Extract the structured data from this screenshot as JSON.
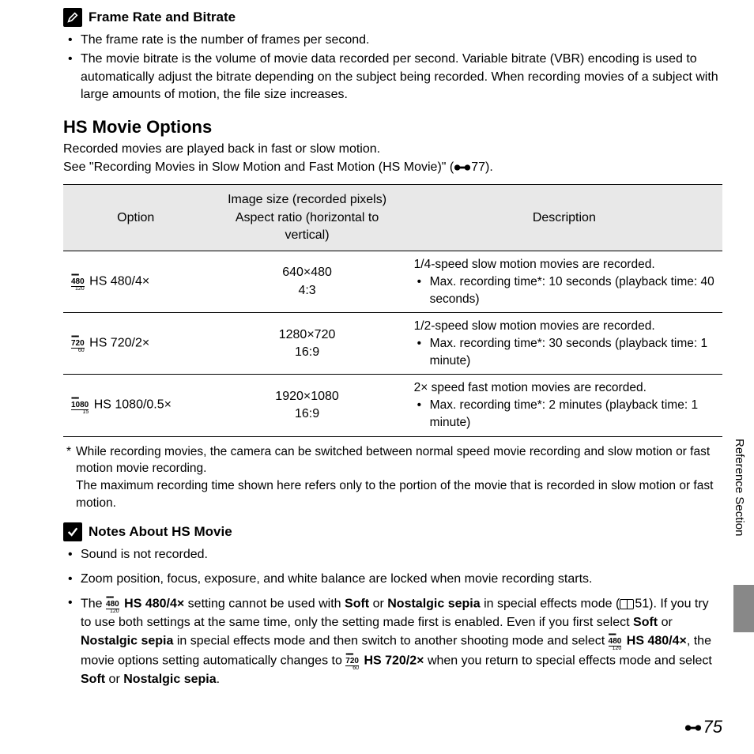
{
  "frame_rate_section": {
    "title": "Frame Rate and Bitrate",
    "bullets": [
      "The frame rate is the number of frames per second.",
      "The movie bitrate is the volume of movie data recorded per second. Variable bitrate (VBR) encoding is used to automatically adjust the bitrate depending on the subject being recorded. When recording movies of a subject with large amounts of motion, the file size increases."
    ]
  },
  "hs_section": {
    "title": "HS Movie Options",
    "intro_line1": "Recorded movies are played back in fast or slow motion.",
    "intro_line2a": "See \"Recording Movies in Slow Motion and Fast Motion (HS Movie)\" (",
    "intro_ref": "77).",
    "table": {
      "headers": [
        "Option",
        "Image size (recorded pixels)\nAspect ratio (horizontal to vertical)",
        "Description"
      ],
      "rows": [
        {
          "icon_res": "480",
          "icon_sub": "120",
          "option": " HS 480/4×",
          "size_line1": "640×480",
          "size_line2": "4:3",
          "desc_main": "1/4-speed slow motion movies are recorded.",
          "desc_bullet": "Max. recording time*: 10 seconds (playback time: 40 seconds)"
        },
        {
          "icon_res": "720",
          "icon_sub": "60",
          "option": " HS 720/2×",
          "size_line1": "1280×720",
          "size_line2": "16:9",
          "desc_main": "1/2-speed slow motion movies are recorded.",
          "desc_bullet": "Max. recording time*: 30 seconds (playback time: 1 minute)"
        },
        {
          "icon_res": "1080",
          "icon_sub": "15",
          "option": " HS 1080/0.5×",
          "size_line1": "1920×1080",
          "size_line2": "16:9",
          "desc_main": "2× speed fast motion movies are recorded.",
          "desc_bullet": "Max. recording time*: 2 minutes (playback time: 1 minute)"
        }
      ]
    },
    "footnote_star": "*",
    "footnote_text1": "While recording movies, the camera can be switched between normal speed movie recording and slow motion or fast motion movie recording.",
    "footnote_text2": "The maximum recording time shown here refers only to the portion of the movie that is recorded in slow motion or fast motion."
  },
  "notes_section": {
    "title": "Notes About HS Movie",
    "note1": "Sound is not recorded.",
    "note2": "Zoom position, focus, exposure, and white balance are locked when movie recording starts.",
    "note3": {
      "t1": "The ",
      "b1": "HS 480/4×",
      "t2": " setting cannot be used with ",
      "b2": "Soft",
      "t3": " or ",
      "b3": "Nostalgic sepia",
      "t4": " in special effects mode (",
      "ref": "51). If you try to use both settings at the same time, only the setting made first is enabled. Even if you first select ",
      "b4": "Soft",
      "t5": " or ",
      "b5": "Nostalgic sepia",
      "t6": " in special effects mode and then switch to another shooting mode and select ",
      "b6": "HS 480/4×",
      "t7": ", the movie options setting automatically changes to ",
      "b7": "HS 720/2×",
      "t8": " when you return to special effects mode and select ",
      "b8": "Soft",
      "t9": " or ",
      "b9": "Nostalgic sepia",
      "t10": "."
    }
  },
  "side_label": "Reference Section",
  "page_number": "75"
}
